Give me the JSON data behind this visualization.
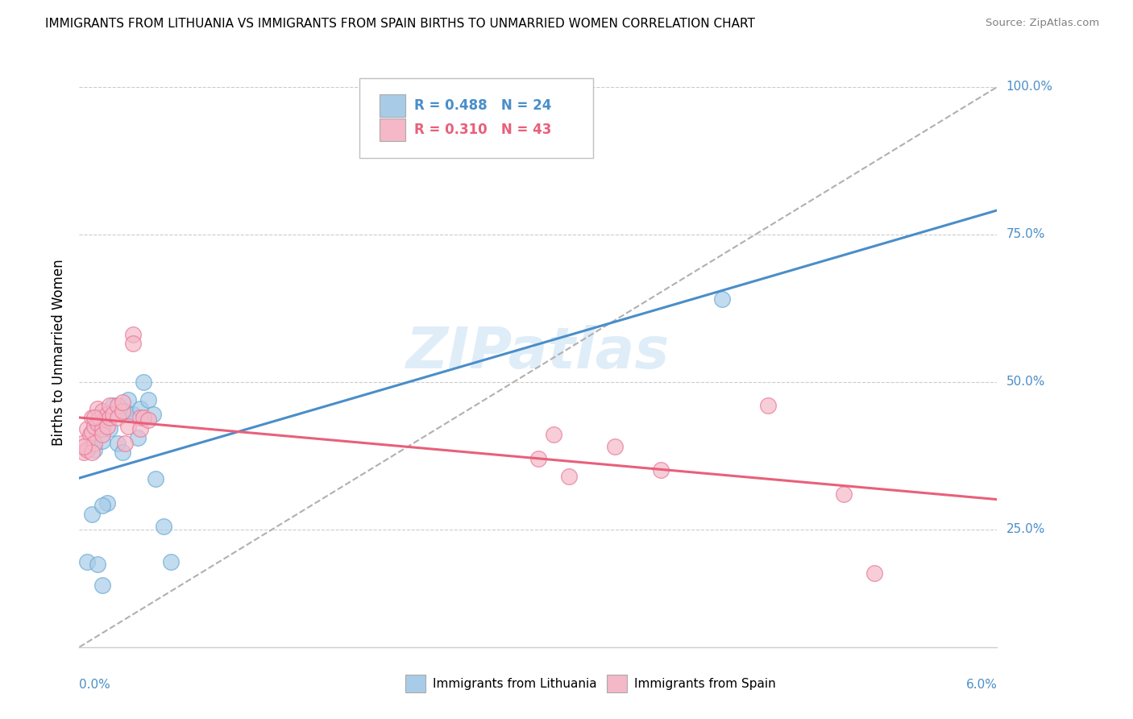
{
  "title": "IMMIGRANTS FROM LITHUANIA VS IMMIGRANTS FROM SPAIN BIRTHS TO UNMARRIED WOMEN CORRELATION CHART",
  "source": "Source: ZipAtlas.com",
  "ylabel": "Births to Unmarried Women",
  "watermark": "ZIPatlas",
  "blue_R": 0.488,
  "blue_N": 24,
  "pink_R": 0.31,
  "pink_N": 43,
  "blue_color": "#a8cce8",
  "blue_edge": "#6aaad4",
  "pink_color": "#f4b8c8",
  "pink_edge": "#e87898",
  "blue_line": "#4a8ec8",
  "pink_line": "#e8607a",
  "dash_color": "#b0b0b0",
  "blue_scatter": [
    [
      0.0005,
      0.195
    ],
    [
      0.0008,
      0.275
    ],
    [
      0.001,
      0.385
    ],
    [
      0.0012,
      0.19
    ],
    [
      0.0015,
      0.155
    ],
    [
      0.0015,
      0.4
    ],
    [
      0.0018,
      0.295
    ],
    [
      0.002,
      0.42
    ],
    [
      0.0022,
      0.46
    ],
    [
      0.0025,
      0.395
    ],
    [
      0.0028,
      0.38
    ],
    [
      0.003,
      0.45
    ],
    [
      0.0032,
      0.47
    ],
    [
      0.0035,
      0.445
    ],
    [
      0.0038,
      0.405
    ],
    [
      0.004,
      0.455
    ],
    [
      0.0042,
      0.5
    ],
    [
      0.0045,
      0.47
    ],
    [
      0.0048,
      0.445
    ],
    [
      0.005,
      0.335
    ],
    [
      0.0055,
      0.255
    ],
    [
      0.006,
      0.195
    ],
    [
      0.042,
      0.64
    ],
    [
      0.0015,
      0.29
    ]
  ],
  "pink_scatter": [
    [
      0.0002,
      0.395
    ],
    [
      0.0003,
      0.38
    ],
    [
      0.0005,
      0.385
    ],
    [
      0.0005,
      0.42
    ],
    [
      0.0007,
      0.41
    ],
    [
      0.0008,
      0.44
    ],
    [
      0.0008,
      0.415
    ],
    [
      0.001,
      0.425
    ],
    [
      0.001,
      0.395
    ],
    [
      0.0012,
      0.43
    ],
    [
      0.0012,
      0.455
    ],
    [
      0.0013,
      0.44
    ],
    [
      0.0015,
      0.42
    ],
    [
      0.0015,
      0.45
    ],
    [
      0.0015,
      0.41
    ],
    [
      0.0018,
      0.445
    ],
    [
      0.0018,
      0.425
    ],
    [
      0.002,
      0.44
    ],
    [
      0.002,
      0.46
    ],
    [
      0.0022,
      0.445
    ],
    [
      0.0025,
      0.46
    ],
    [
      0.0025,
      0.44
    ],
    [
      0.0028,
      0.45
    ],
    [
      0.0028,
      0.465
    ],
    [
      0.003,
      0.395
    ],
    [
      0.0032,
      0.425
    ],
    [
      0.0035,
      0.58
    ],
    [
      0.0035,
      0.565
    ],
    [
      0.004,
      0.44
    ],
    [
      0.004,
      0.42
    ],
    [
      0.0042,
      0.44
    ],
    [
      0.0045,
      0.435
    ],
    [
      0.03,
      0.37
    ],
    [
      0.031,
      0.41
    ],
    [
      0.032,
      0.34
    ],
    [
      0.035,
      0.39
    ],
    [
      0.038,
      0.35
    ],
    [
      0.0008,
      0.38
    ],
    [
      0.05,
      0.31
    ],
    [
      0.045,
      0.46
    ],
    [
      0.052,
      0.175
    ],
    [
      0.0003,
      0.39
    ],
    [
      0.001,
      0.44
    ]
  ],
  "xlim": [
    0.0,
    0.06
  ],
  "ylim": [
    0.05,
    1.05
  ],
  "yticks": [
    0.25,
    0.5,
    0.75,
    1.0
  ],
  "ytick_labels": [
    "25.0%",
    "50.0%",
    "75.0%",
    "100.0%"
  ],
  "figwidth": 14.06,
  "figheight": 8.92
}
